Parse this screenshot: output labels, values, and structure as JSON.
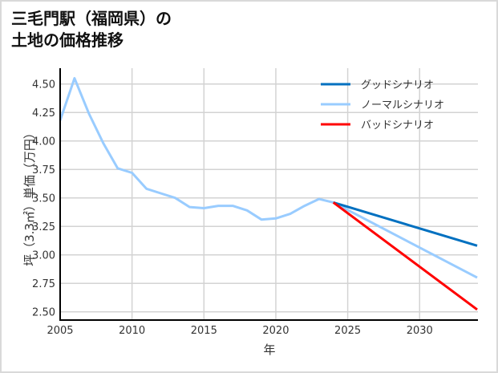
{
  "title": {
    "line1": "三毛門駅（福岡県）の",
    "line2": "土地の価格推移"
  },
  "chart_data": {
    "type": "line",
    "title": "三毛門駅（福岡県）の土地の価格推移",
    "xlabel": "年",
    "ylabel": "坪（3.3㎡）単価（万円）",
    "xlim": [
      2005,
      2034
    ],
    "ylim": [
      2.42,
      4.62
    ],
    "grid": true,
    "legend_position": "upper right",
    "x_ticks": [
      "2005",
      "2010",
      "2015",
      "2020",
      "2025",
      "2030"
    ],
    "y_ticks": [
      "2.50",
      "2.75",
      "3.00",
      "3.25",
      "3.50",
      "3.75",
      "4.00",
      "4.25",
      "4.50"
    ],
    "series": [
      {
        "name": "グッドシナリオ",
        "color": "#0070c0",
        "x": [
          2024,
          2034
        ],
        "values": [
          3.46,
          3.08
        ]
      },
      {
        "name": "ノーマルシナリオ",
        "color": "#99ccff",
        "x": [
          2005,
          2006,
          2007,
          2008,
          2009,
          2010,
          2011,
          2012,
          2013,
          2014,
          2015,
          2016,
          2017,
          2018,
          2019,
          2020,
          2021,
          2022,
          2023,
          2024,
          2034
        ],
        "values": [
          4.18,
          4.55,
          4.24,
          3.98,
          3.76,
          3.72,
          3.58,
          3.54,
          3.5,
          3.42,
          3.41,
          3.43,
          3.43,
          3.39,
          3.31,
          3.32,
          3.36,
          3.43,
          3.49,
          3.46,
          2.8
        ]
      },
      {
        "name": "バッドシナリオ",
        "color": "#ff0000",
        "x": [
          2024,
          2034
        ],
        "values": [
          3.46,
          2.52
        ]
      }
    ]
  }
}
